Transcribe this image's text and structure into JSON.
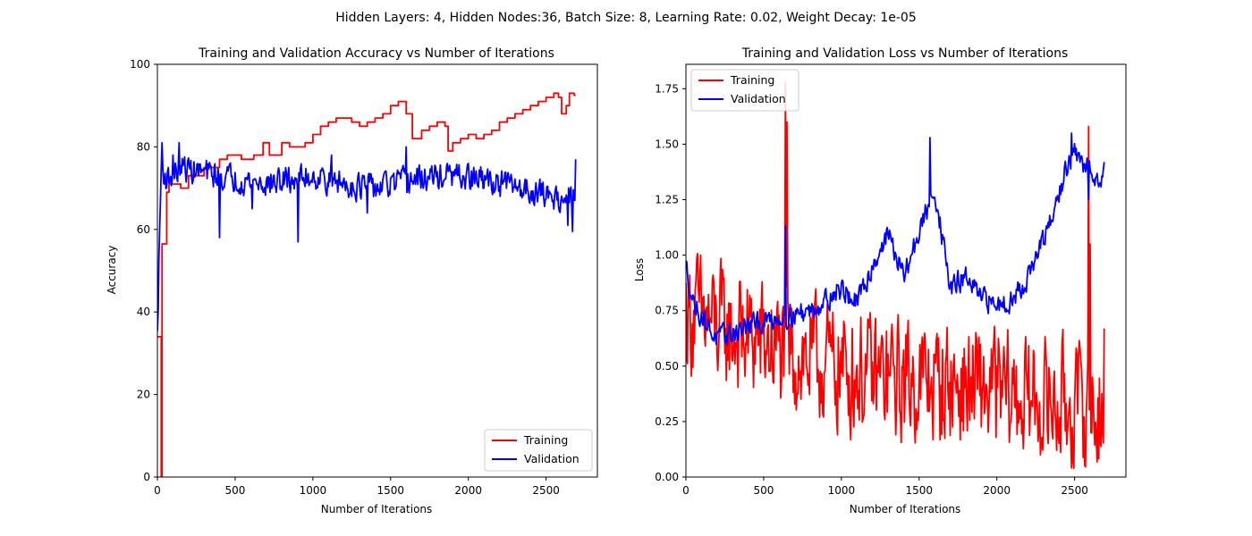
{
  "figure": {
    "suptitle": "Hidden Layers: 4, Hidden Nodes:36, Batch Size: 8, Learning Rate: 0.02, Weight Decay: 1e-05"
  },
  "chart_data": [
    {
      "type": "line",
      "title": "Training and Validation Accuracy vs Number of Iterations",
      "xlabel": "Number of Iterations",
      "ylabel": "Accuracy",
      "xlim": [
        0,
        2830
      ],
      "ylim": [
        0,
        100
      ],
      "xticks": [
        0,
        500,
        1000,
        1500,
        2000,
        2500
      ],
      "yticks": [
        0,
        20,
        40,
        60,
        80,
        100
      ],
      "xtick_labels": [
        "0",
        "500",
        "1000",
        "1500",
        "2000",
        "2500"
      ],
      "ytick_labels": [
        "0",
        "20",
        "40",
        "60",
        "80",
        "100"
      ],
      "grid": false,
      "legend": "lower-right",
      "series": [
        {
          "name": "Training",
          "color": "#ff0000",
          "style": "step",
          "x": [
            0,
            25,
            30,
            60,
            75,
            100,
            150,
            200,
            300,
            400,
            450,
            540,
            620,
            680,
            720,
            800,
            850,
            950,
            1000,
            1050,
            1100,
            1150,
            1200,
            1250,
            1300,
            1350,
            1400,
            1450,
            1500,
            1550,
            1600,
            1640,
            1700,
            1750,
            1800,
            1850,
            1870,
            1900,
            1950,
            2000,
            2050,
            2100,
            2150,
            2200,
            2250,
            2300,
            2350,
            2400,
            2450,
            2500,
            2550,
            2580,
            2600,
            2630,
            2650,
            2680
          ],
          "values": [
            34,
            0,
            56.5,
            69,
            71,
            71,
            70,
            73,
            75,
            77,
            78,
            77,
            78,
            81,
            78,
            81,
            80,
            81,
            83,
            85,
            86,
            87,
            87,
            86,
            85,
            86,
            87,
            88,
            90,
            91,
            88,
            82,
            84,
            85,
            86,
            85,
            79,
            81,
            82,
            83,
            82,
            83,
            84,
            86,
            87,
            88,
            89,
            90,
            91,
            92,
            93,
            92,
            88,
            90,
            93,
            92.5
          ]
        },
        {
          "name": "Validation",
          "color": "#0000ff",
          "style": "noisy",
          "base": [
            [
              0,
              34
            ],
            [
              15,
              60
            ],
            [
              25,
              75
            ],
            [
              60,
              72
            ],
            [
              150,
              75
            ],
            [
              400,
              73
            ],
            [
              700,
              71
            ],
            [
              1000,
              73
            ],
            [
              1200,
              71
            ],
            [
              1400,
              70
            ],
            [
              1650,
              72
            ],
            [
              1850,
              73
            ],
            [
              2100,
              72
            ],
            [
              2350,
              70
            ],
            [
              2550,
              68
            ],
            [
              2690,
              67
            ]
          ],
          "amplitude": 4.5,
          "spikes": [
            [
              30,
              81
            ],
            [
              100,
              78
            ],
            [
              140,
              81
            ],
            [
              400,
              58
            ],
            [
              610,
              65
            ],
            [
              905,
              57
            ],
            [
              1120,
              78
            ],
            [
              1350,
              64
            ],
            [
              1600,
              80
            ],
            [
              2640,
              61
            ],
            [
              2670,
              59.5
            ],
            [
              2690,
              77
            ]
          ]
        }
      ]
    },
    {
      "type": "line",
      "title": "Training and Validation Loss vs Number of Iterations",
      "xlabel": "Number of Iterations",
      "ylabel": "Loss",
      "xlim": [
        0,
        2830
      ],
      "ylim": [
        0,
        1.86
      ],
      "xticks": [
        0,
        500,
        1000,
        1500,
        2000,
        2500
      ],
      "yticks": [
        0.0,
        0.25,
        0.5,
        0.75,
        1.0,
        1.25,
        1.5,
        1.75
      ],
      "xtick_labels": [
        "0",
        "500",
        "1000",
        "1500",
        "2000",
        "2500"
      ],
      "ytick_labels": [
        "0.00",
        "0.25",
        "0.50",
        "0.75",
        "1.00",
        "1.25",
        "1.50",
        "1.75"
      ],
      "grid": false,
      "legend": "upper-left",
      "series": [
        {
          "name": "Training",
          "color": "#ff0000",
          "style": "noisy",
          "base": [
            [
              0,
              0.75
            ],
            [
              300,
              0.65
            ],
            [
              700,
              0.55
            ],
            [
              1200,
              0.45
            ],
            [
              1700,
              0.42
            ],
            [
              2200,
              0.35
            ],
            [
              2690,
              0.3
            ]
          ],
          "amplitude": 0.38,
          "spikes": [
            [
              640,
              1.78
            ],
            [
              650,
              1.6
            ],
            [
              2590,
              1.58
            ],
            [
              2600,
              1.05
            ],
            [
              2690,
              0.67
            ]
          ]
        },
        {
          "name": "Validation",
          "color": "#0000ff",
          "style": "noisy",
          "base": [
            [
              0,
              0.95
            ],
            [
              50,
              0.78
            ],
            [
              200,
              0.62
            ],
            [
              400,
              0.68
            ],
            [
              600,
              0.72
            ],
            [
              800,
              0.75
            ],
            [
              1000,
              0.85
            ],
            [
              1100,
              0.78
            ],
            [
              1200,
              0.95
            ],
            [
              1300,
              1.1
            ],
            [
              1400,
              0.9
            ],
            [
              1500,
              1.1
            ],
            [
              1600,
              1.3
            ],
            [
              1700,
              0.85
            ],
            [
              1800,
              0.9
            ],
            [
              1900,
              0.8
            ],
            [
              2000,
              0.78
            ],
            [
              2100,
              0.8
            ],
            [
              2200,
              0.9
            ],
            [
              2350,
              1.15
            ],
            [
              2450,
              1.4
            ],
            [
              2500,
              1.45
            ],
            [
              2600,
              1.38
            ],
            [
              2690,
              1.35
            ]
          ],
          "amplitude": 0.07,
          "spikes": [
            [
              640,
              1.13
            ],
            [
              1570,
              1.53
            ],
            [
              2480,
              1.55
            ],
            [
              2590,
              1.25
            ],
            [
              2690,
              1.42
            ]
          ]
        }
      ]
    }
  ]
}
